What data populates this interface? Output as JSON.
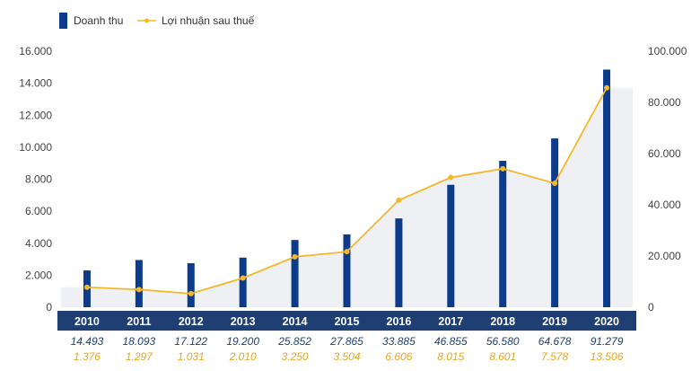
{
  "chart_data": {
    "type": "bar",
    "categories": [
      "2010",
      "2011",
      "2012",
      "2013",
      "2014",
      "2015",
      "2016",
      "2017",
      "2018",
      "2019",
      "2020"
    ],
    "series": [
      {
        "name": "Doanh thu",
        "type": "bar",
        "axis": "left",
        "values": [
          2300,
          2950,
          2750,
          3100,
          4200,
          4550,
          5550,
          7650,
          9150,
          10550,
          14850
        ],
        "color": "#0d3b8c"
      },
      {
        "name": "Lợi nhuận sau thuế",
        "type": "line",
        "axis": "right",
        "values": [
          7800,
          6900,
          5300,
          11400,
          19700,
          21700,
          41800,
          50700,
          54100,
          48400,
          85700
        ],
        "color": "#f4b829"
      }
    ],
    "left_axis": {
      "ylim": [
        0,
        16000
      ],
      "ticks": [
        "0",
        "2.000",
        "4.000",
        "6.000",
        "8.000",
        "10.000",
        "12.000",
        "14.000",
        "16.000"
      ]
    },
    "right_axis": {
      "ylim": [
        0,
        100000
      ],
      "ticks": [
        "0",
        "20.000",
        "40.000",
        "60.000",
        "80.000",
        "100.000"
      ]
    },
    "table_rows": {
      "revenue": [
        "14.493",
        "18.093",
        "17.122",
        "19.200",
        "25.852",
        "27.865",
        "33.885",
        "46.855",
        "56.580",
        "64.678",
        "91.279"
      ],
      "profit": [
        "1.376",
        "1.297",
        "1.031",
        "2.010",
        "3.250",
        "3.504",
        "6.606",
        "8.015",
        "8.601",
        "7.578",
        "13.506"
      ]
    },
    "legend": {
      "placement": "top-left"
    },
    "colors": {
      "bar": "#0d3b8c",
      "line": "#f4b829",
      "area": "#eef0f3",
      "year_band": "#1f3f73",
      "revenue_text": "#1f3f73",
      "profit_text": "#e8a525"
    }
  }
}
